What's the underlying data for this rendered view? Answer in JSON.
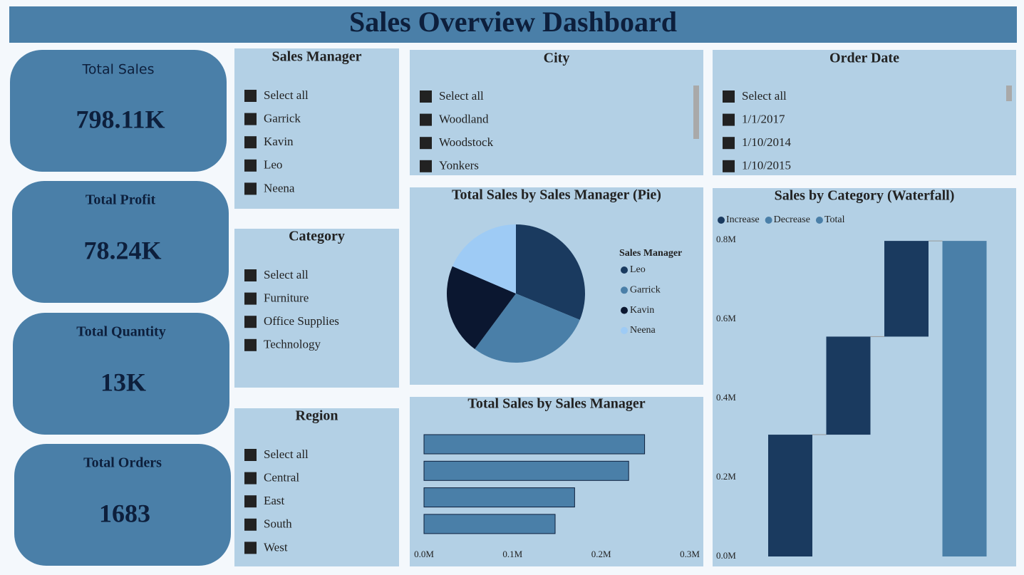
{
  "header": {
    "title": "Sales Overview Dashboard"
  },
  "kpis": [
    {
      "label": "Total Sales",
      "value": "798.11K"
    },
    {
      "label": "Total Profit",
      "value": "78.24K"
    },
    {
      "label": "Total Quantity",
      "value": "13K"
    },
    {
      "label": "Total Orders",
      "value": "1683"
    }
  ],
  "slicers": [
    {
      "title": "Sales Manager",
      "items": [
        "Select all",
        "Garrick",
        "Kavin",
        "Leo",
        "Neena"
      ]
    },
    {
      "title": "Category",
      "items": [
        "Select all",
        "Furniture",
        "Office Supplies",
        "Technology"
      ]
    },
    {
      "title": "Region",
      "items": [
        "Select all",
        "Central",
        "East",
        "South",
        "West"
      ]
    },
    {
      "title": "City",
      "items": [
        "Select all",
        "Woodland",
        "Woodstock",
        "Yonkers"
      ]
    },
    {
      "title": "Order Date",
      "items": [
        "Select all",
        "1/1/2017",
        "1/10/2014",
        "1/10/2015"
      ]
    }
  ],
  "chart_data": [
    {
      "type": "pie",
      "title": "Total Sales by Sales Manager (Pie)",
      "legend_title": "Sales Manager",
      "categories": [
        "Leo",
        "Garrick",
        "Kavin",
        "Neena"
      ],
      "values": [
        0.249,
        0.231,
        0.17,
        0.148
      ],
      "colors": [
        "#1a3a5f",
        "#4a7fa8",
        "#0b1730",
        "#9ecbf5"
      ]
    },
    {
      "type": "bar",
      "orientation": "horizontal",
      "title": "Total Sales by Sales Manager",
      "categories": [
        null,
        null,
        null,
        null
      ],
      "values": [
        0.249,
        0.231,
        0.17,
        0.148
      ],
      "color": "#4a7fa8",
      "xlim": [
        0,
        0.3
      ],
      "xticks": [
        {
          "value": 0,
          "label": "0.0M"
        },
        {
          "value": 0.1,
          "label": "0.1M"
        },
        {
          "value": 0.2,
          "label": "0.2M"
        },
        {
          "value": 0.3,
          "label": "0.3M"
        }
      ]
    },
    {
      "type": "waterfall",
      "title": "Sales by Category (Waterfall)",
      "legend": [
        {
          "name": "Increase",
          "color": "#1a3a5f"
        },
        {
          "name": "Decrease",
          "color": "#4a7fa8"
        },
        {
          "name": "Total",
          "color": "#4a7fa8"
        }
      ],
      "categories": [
        null,
        null,
        null,
        null
      ],
      "measures": [
        "relative",
        "relative",
        "relative",
        "total"
      ],
      "values": [
        0.308,
        0.248,
        0.242,
        0.798
      ],
      "ylim": [
        0,
        0.8
      ],
      "yticks": [
        {
          "value": 0,
          "label": "0.0M"
        },
        {
          "value": 0.2,
          "label": "0.2M"
        },
        {
          "value": 0.4,
          "label": "0.4M"
        },
        {
          "value": 0.6,
          "label": "0.6M"
        },
        {
          "value": 0.8,
          "label": "0.8M"
        }
      ]
    }
  ]
}
